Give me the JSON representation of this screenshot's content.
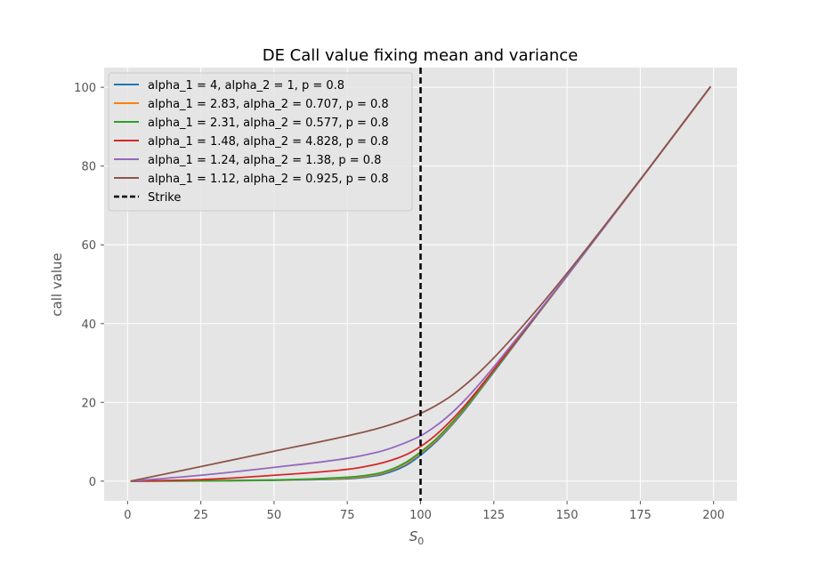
{
  "chart_data": {
    "type": "line",
    "title": "DE Call value fixing mean and variance",
    "xlabel": "S",
    "xlabel_sub": "0",
    "ylabel": "call value",
    "xlim": [
      -8,
      208
    ],
    "ylim": [
      -5,
      105
    ],
    "xticks": [
      0,
      25,
      50,
      75,
      100,
      125,
      150,
      175,
      200
    ],
    "yticks": [
      0,
      20,
      40,
      60,
      80,
      100
    ],
    "grid": true,
    "legend_position": "upper-left",
    "strike": {
      "name": "Strike",
      "x": 100,
      "color": "#000000",
      "style": "dashed"
    },
    "x": [
      1,
      25,
      50,
      75,
      85,
      90,
      95,
      100,
      105,
      110,
      115,
      120,
      125,
      130,
      140,
      150,
      175,
      199
    ],
    "series": [
      {
        "name": "alpha_1 = 4, alpha_2 = 1, p = 0.8",
        "color": "#1f77b4",
        "values": [
          0,
          0.05,
          0.2,
          0.6,
          1.4,
          2.4,
          4.0,
          6.6,
          9.8,
          13.7,
          18.0,
          22.8,
          27.7,
          32.6,
          42.4,
          52.1,
          76.5,
          100.2
        ]
      },
      {
        "name": "alpha_1 = 2.83, alpha_2 = 0.707, p = 0.8",
        "color": "#ff7f0e",
        "values": [
          0,
          0.06,
          0.25,
          0.8,
          1.7,
          2.8,
          4.5,
          7.1,
          10.2,
          14.0,
          18.3,
          23.0,
          27.9,
          32.8,
          42.5,
          52.1,
          76.5,
          100.2
        ]
      },
      {
        "name": "alpha_1 = 2.31, alpha_2 = 0.577, p = 0.8",
        "color": "#2ca02c",
        "values": [
          0,
          0.08,
          0.3,
          1.0,
          1.9,
          3.0,
          4.8,
          7.4,
          10.5,
          14.3,
          18.5,
          23.2,
          28.0,
          32.9,
          42.5,
          52.1,
          76.5,
          100.2
        ]
      },
      {
        "name": "alpha_1 = 1.48, alpha_2 = 4.828, p = 0.8",
        "color": "#d62728",
        "values": [
          0,
          0.4,
          1.5,
          3.0,
          4.3,
          5.3,
          6.7,
          8.8,
          11.6,
          15.1,
          19.1,
          23.6,
          28.3,
          33.1,
          42.6,
          52.2,
          76.5,
          100.2
        ]
      },
      {
        "name": "alpha_1 = 1.24, alpha_2 = 1.38, p = 0.8",
        "color": "#9467bd",
        "values": [
          0,
          1.5,
          3.5,
          5.8,
          7.3,
          8.4,
          9.8,
          11.5,
          13.9,
          16.9,
          20.5,
          24.6,
          29.0,
          33.6,
          42.8,
          52.2,
          76.5,
          100.2
        ]
      },
      {
        "name": "alpha_1 = 1.12, alpha_2 = 0.925, p = 0.8",
        "color": "#8c564b",
        "values": [
          0,
          3.7,
          7.6,
          11.5,
          13.3,
          14.4,
          15.7,
          17.2,
          19.1,
          21.4,
          24.3,
          27.6,
          31.3,
          35.3,
          43.8,
          52.8,
          76.6,
          100.2
        ]
      }
    ]
  }
}
